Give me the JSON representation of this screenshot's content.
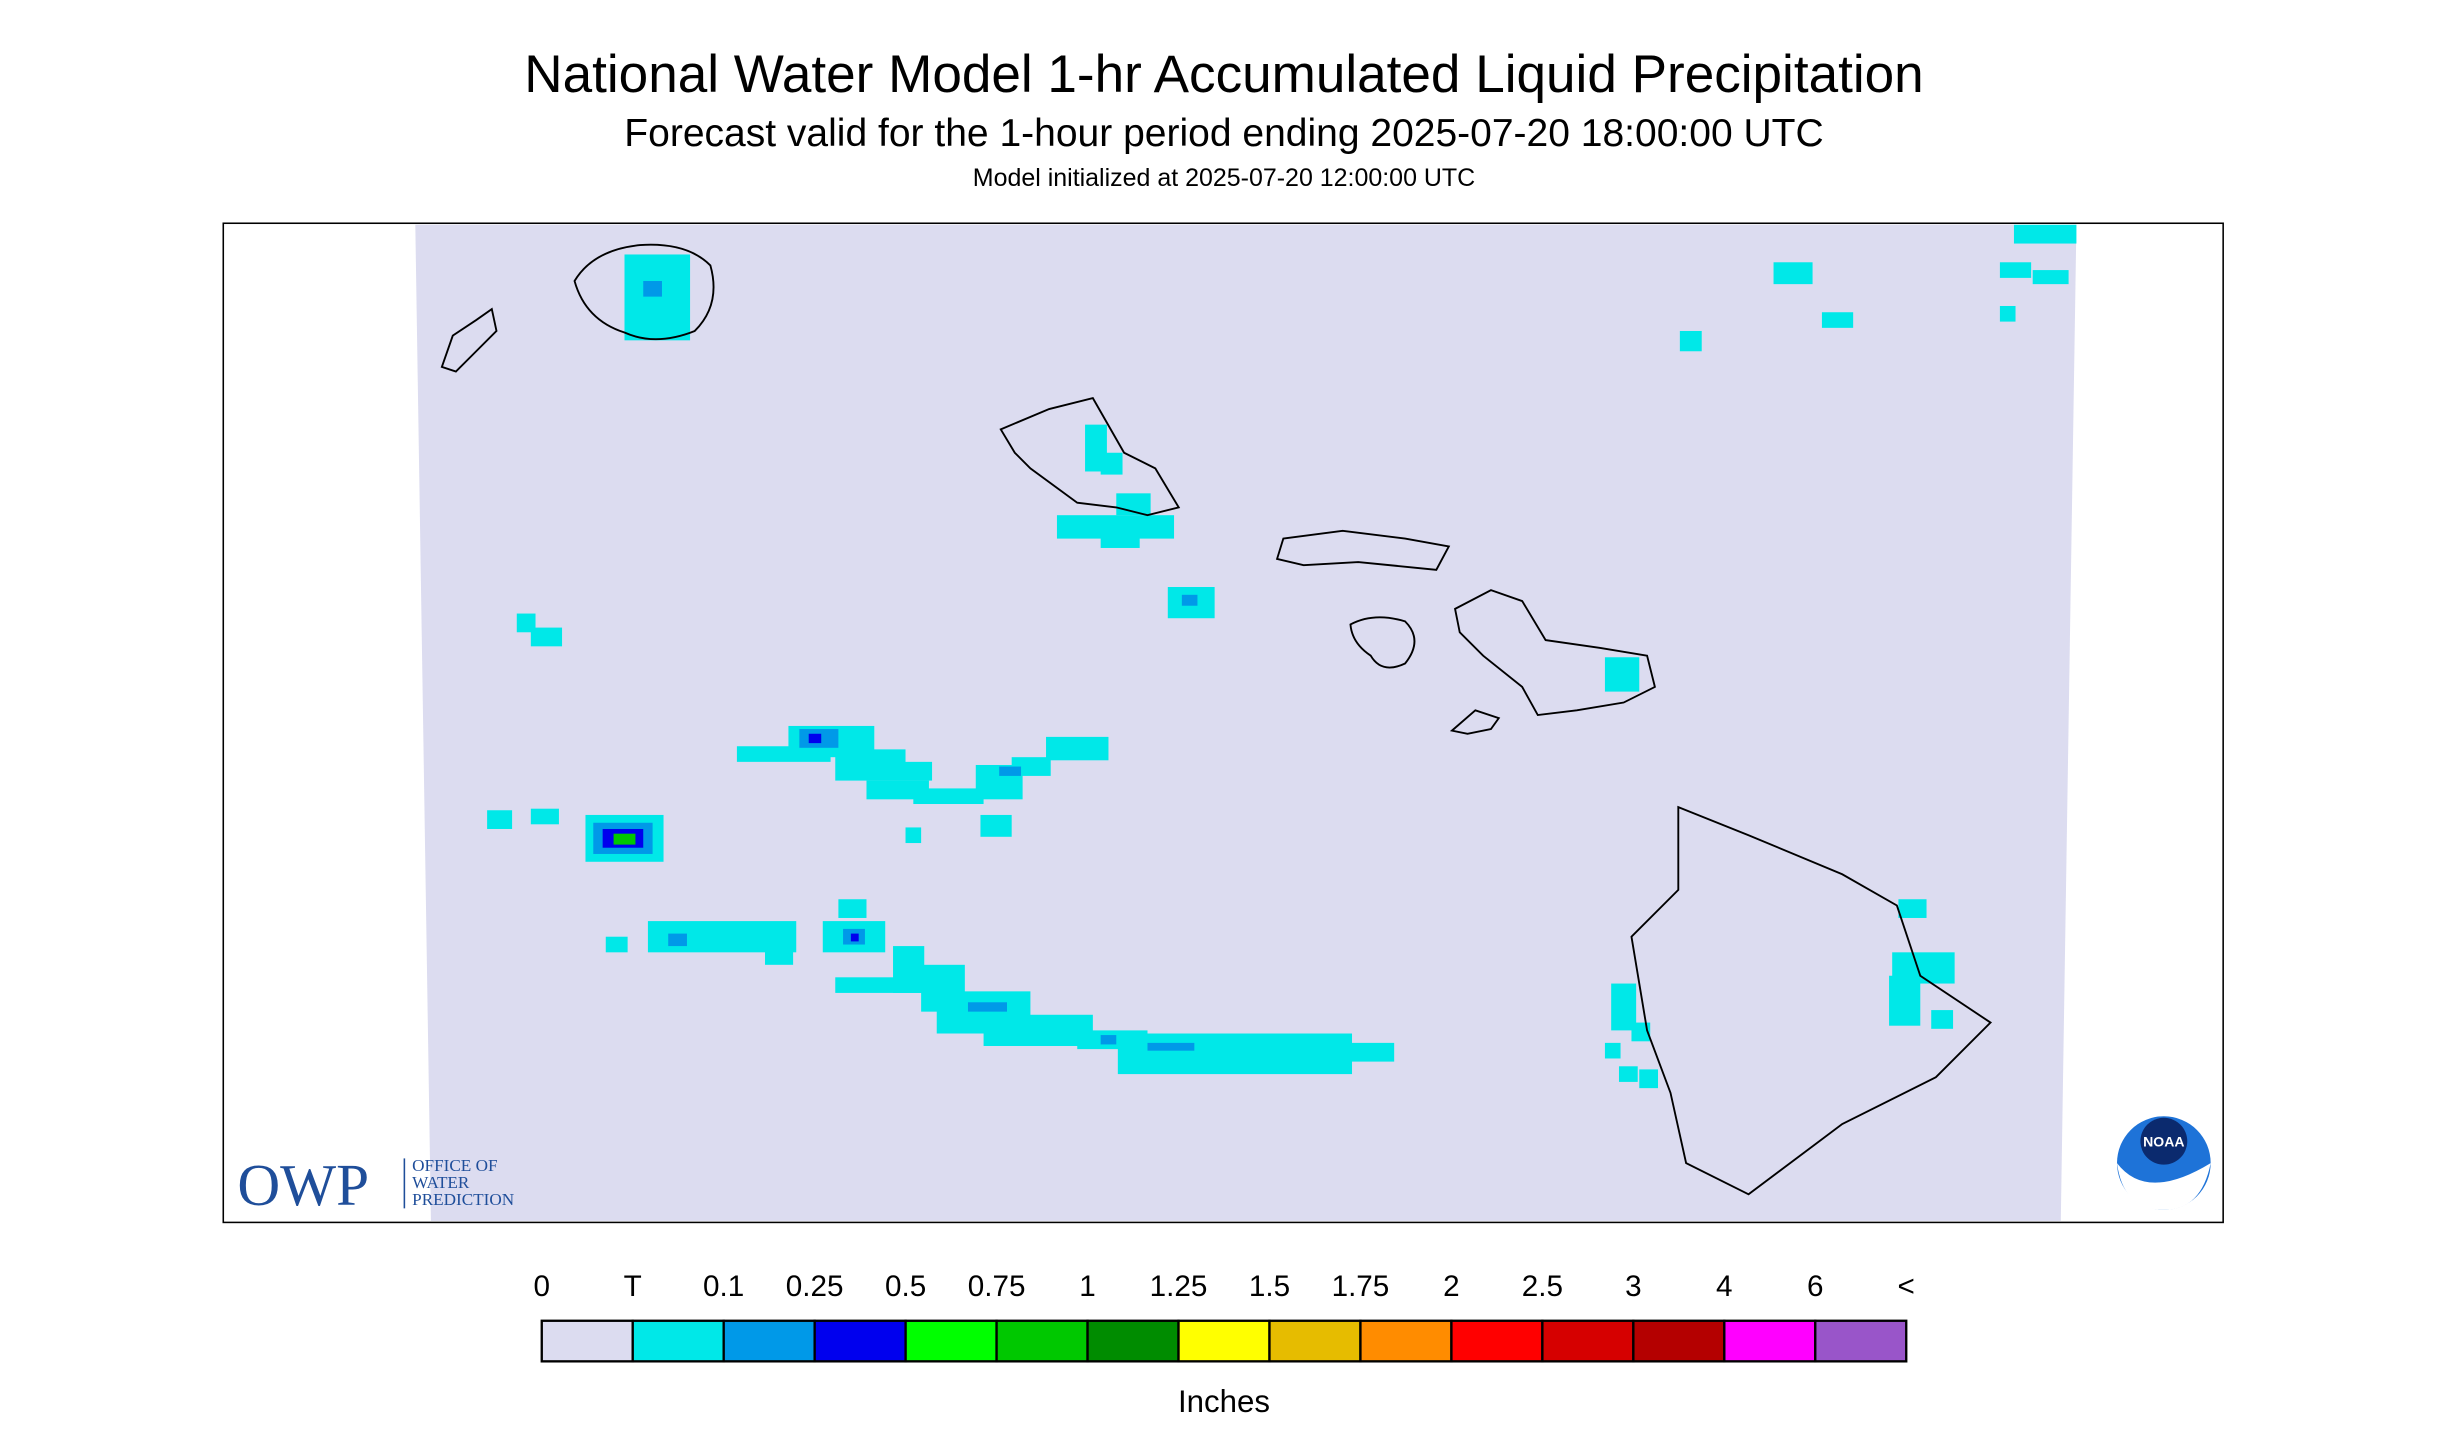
{
  "header": {
    "title": "National Water Model 1-hr Accumulated Liquid Precipitation",
    "subtitle": "Forecast valid for the 1-hour period ending 2025-07-20 18:00:00 UTC",
    "init": "Model initialized at 2025-07-20 12:00:00 UTC"
  },
  "legend": {
    "labels": [
      "0",
      "T",
      "0.1",
      "0.25",
      "0.5",
      "0.75",
      "1",
      "1.25",
      "1.5",
      "1.75",
      "2",
      "2.5",
      "3",
      "4",
      "6",
      "<"
    ],
    "colors": [
      "#dcdcf0",
      "#00e8e8",
      "#0099e8",
      "#0000ee",
      "#00ff00",
      "#00c800",
      "#008c00",
      "#ffff00",
      "#e6bc00",
      "#ff8c00",
      "#ff0000",
      "#d60000",
      "#b40000",
      "#ff00ff",
      "#9955c9"
    ],
    "unit": "Inches"
  },
  "logos": {
    "owp": "OWP",
    "owp_lines": [
      "OFFICE OF",
      "WATER",
      "PREDICTION"
    ],
    "noaa": "NOAA"
  }
}
